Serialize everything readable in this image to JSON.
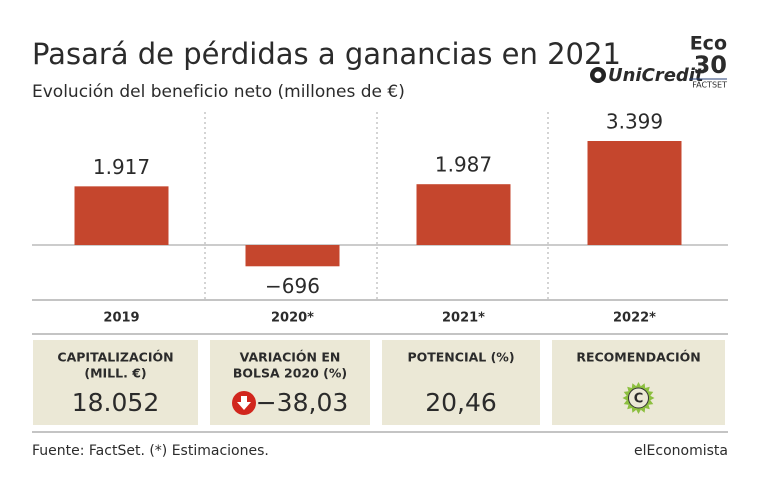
{
  "chart_data": {
    "type": "bar",
    "title": "Pasará de pérdidas a ganancias en 2021",
    "subtitle": "Evolución del beneficio neto (millones de €)",
    "categories": [
      "2019",
      "2020*",
      "2021*",
      "2022*"
    ],
    "values": [
      1917,
      -696,
      1987,
      3399
    ],
    "value_labels": [
      "1.917",
      "−696",
      "1.987",
      "3.399"
    ],
    "color": "#c5462d"
  },
  "brand": {
    "company": "UniCredit",
    "eco": "Eco",
    "eco_number": "30",
    "factset": "FACTSET"
  },
  "kpis": [
    {
      "label": [
        "CAPITALIZACIÓN",
        "(MILL. €)"
      ],
      "value": "18.052"
    },
    {
      "label": [
        "VARIACIÓN EN",
        "BOLSA 2020 (%)"
      ],
      "value": "−38,03"
    },
    {
      "label": [
        "POTENCIAL (%)"
      ],
      "value": "20,46"
    },
    {
      "label": [
        "RECOMENDACIÓN"
      ],
      "icon_label": "C"
    }
  ],
  "footer": {
    "source": "Fuente: FactSet. (*) Estimaciones.",
    "publisher": "elEconomista"
  }
}
